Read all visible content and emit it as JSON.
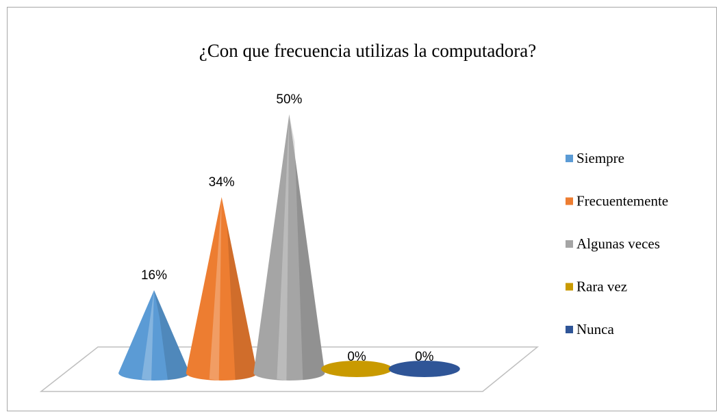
{
  "chart_data": {
    "type": "cone",
    "title": "¿Con que frecuencia utilizas la computadora?",
    "categories": [
      "Siempre",
      "Frecuentemente",
      "Algunas veces",
      "Rara vez",
      "Nunca"
    ],
    "values": [
      16,
      34,
      50,
      0,
      0
    ],
    "value_labels": [
      "16%",
      "34%",
      "50%",
      "0%",
      "0%"
    ],
    "colors": [
      "#5b9bd5",
      "#ed7d31",
      "#a5a5a5",
      "#c99a00",
      "#2f5597"
    ],
    "legend": "right"
  }
}
